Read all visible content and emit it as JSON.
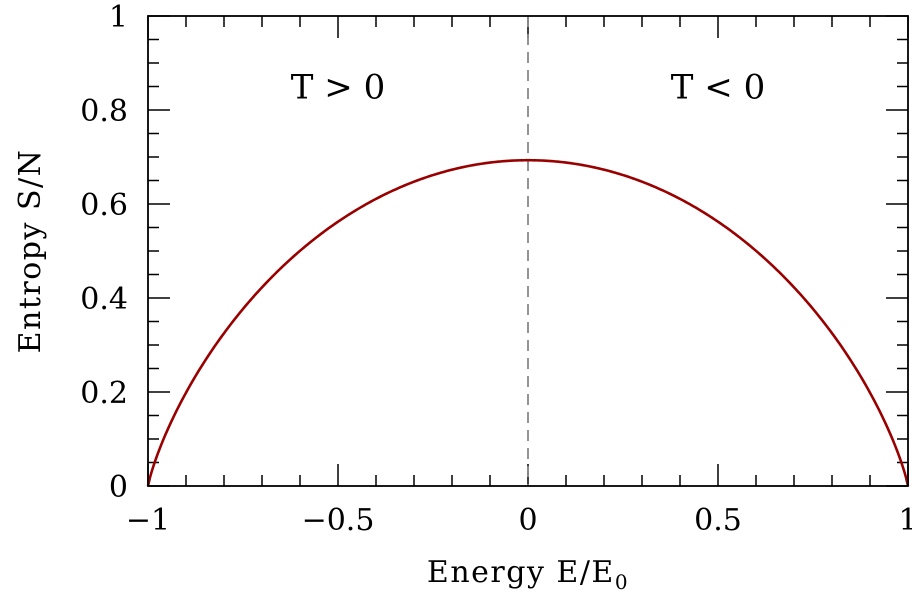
{
  "chart_data": {
    "type": "line",
    "xlabel": "Energy E/E",
    "xlabel_subscript": "0",
    "ylabel": "Entropy S/N",
    "xlim": [
      -1,
      1
    ],
    "ylim": [
      0,
      1
    ],
    "x_ticks": [
      -1,
      -0.5,
      0,
      0.5,
      1
    ],
    "x_tick_labels": [
      "−1",
      "−0.5",
      "0",
      "0.5",
      "1"
    ],
    "y_ticks": [
      0,
      0.2,
      0.4,
      0.6,
      0.8,
      1
    ],
    "y_tick_labels": [
      "0",
      "0.2",
      "0.4",
      "0.6",
      "0.8",
      "1"
    ],
    "x_minor_step": 0.1,
    "y_minor_step": 0.05,
    "grid": false,
    "series": [
      {
        "color": "#990000",
        "formula": "S/N = -((1+x)/2) ln((1+x)/2) - ((1-x)/2) ln((1-x)/2)",
        "x": [
          -1,
          -0.9,
          -0.8,
          -0.7,
          -0.6,
          -0.5,
          -0.4,
          -0.3,
          -0.2,
          -0.1,
          0,
          0.1,
          0.2,
          0.3,
          0.4,
          0.5,
          0.6,
          0.7,
          0.8,
          0.9,
          1
        ],
        "y": [
          0,
          0.199,
          0.325,
          0.423,
          0.5,
          0.562,
          0.611,
          0.647,
          0.673,
          0.688,
          0.693,
          0.688,
          0.673,
          0.647,
          0.611,
          0.562,
          0.5,
          0.423,
          0.325,
          0.199,
          0
        ]
      }
    ],
    "reference_lines": [
      {
        "orientation": "vertical",
        "x": 0,
        "style": "dashed",
        "color": "#888888"
      }
    ],
    "annotations": [
      {
        "text": "T > 0",
        "x": -0.5,
        "y": 0.85
      },
      {
        "text": "T < 0",
        "x": 0.5,
        "y": 0.85
      }
    ]
  }
}
